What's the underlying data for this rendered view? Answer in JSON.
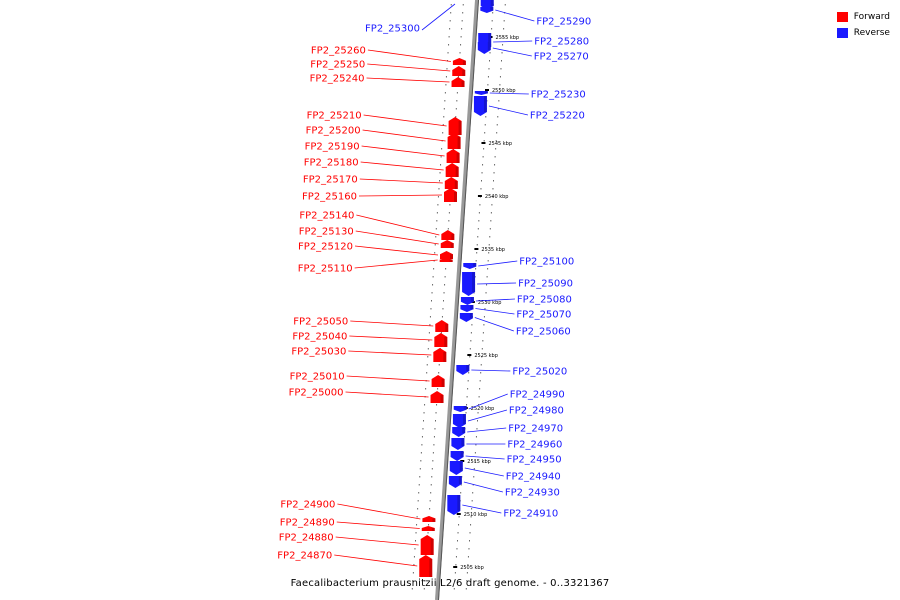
{
  "title": "Faecalibacterium prausnitzii L2/6 draft genome. - 0..3321367",
  "colors": {
    "forward": "#ff0000",
    "reverse": "#1a1aff",
    "axis": "#999999",
    "axis_edge": "#555555"
  },
  "legend": [
    {
      "label": "Forward",
      "color": "#ff0000"
    },
    {
      "label": "Reverse",
      "color": "#1a1aff"
    }
  ],
  "axis": {
    "unit": "kbp",
    "range": [
      2503.5,
      2558.8
    ]
  },
  "ticks": [
    {
      "kbp": 2505,
      "label": "2505 kbp"
    },
    {
      "kbp": 2510,
      "label": "2510 kbp"
    },
    {
      "kbp": 2515,
      "label": "2515 kbp"
    },
    {
      "kbp": 2520,
      "label": "2520 kbp"
    },
    {
      "kbp": 2525,
      "label": "2525 kbp"
    },
    {
      "kbp": 2530,
      "label": "2530 kbp"
    },
    {
      "kbp": 2535,
      "label": "2535 kbp"
    },
    {
      "kbp": 2540,
      "label": "2540 kbp"
    },
    {
      "kbp": 2545,
      "label": "2545 kbp"
    },
    {
      "kbp": 2550,
      "label": "2550 kbp"
    },
    {
      "kbp": 2555,
      "label": "2555 kbp"
    }
  ],
  "genes": [
    {
      "name": "FP2_25300",
      "strand": "reverse"
    },
    {
      "name": "FP2_25290",
      "strand": "reverse"
    },
    {
      "name": "FP2_25280",
      "strand": "reverse"
    },
    {
      "name": "FP2_25270",
      "strand": "reverse"
    },
    {
      "name": "FP2_25260",
      "strand": "forward"
    },
    {
      "name": "FP2_25250",
      "strand": "forward"
    },
    {
      "name": "FP2_25240",
      "strand": "forward"
    },
    {
      "name": "FP2_25230",
      "strand": "reverse"
    },
    {
      "name": "FP2_25220",
      "strand": "reverse"
    },
    {
      "name": "FP2_25210",
      "strand": "forward"
    },
    {
      "name": "FP2_25200",
      "strand": "forward"
    },
    {
      "name": "FP2_25190",
      "strand": "forward"
    },
    {
      "name": "FP2_25180",
      "strand": "forward"
    },
    {
      "name": "FP2_25170",
      "strand": "forward"
    },
    {
      "name": "FP2_25160",
      "strand": "forward"
    },
    {
      "name": "FP2_25140",
      "strand": "forward"
    },
    {
      "name": "FP2_25130",
      "strand": "forward"
    },
    {
      "name": "FP2_25120",
      "strand": "forward"
    },
    {
      "name": "FP2_25110",
      "strand": "forward"
    },
    {
      "name": "FP2_25100",
      "strand": "reverse"
    },
    {
      "name": "FP2_25090",
      "strand": "reverse"
    },
    {
      "name": "FP2_25080",
      "strand": "reverse"
    },
    {
      "name": "FP2_25070",
      "strand": "reverse"
    },
    {
      "name": "FP2_25060",
      "strand": "reverse"
    },
    {
      "name": "FP2_25050",
      "strand": "forward"
    },
    {
      "name": "FP2_25040",
      "strand": "forward"
    },
    {
      "name": "FP2_25030",
      "strand": "forward"
    },
    {
      "name": "FP2_25020",
      "strand": "reverse"
    },
    {
      "name": "FP2_25010",
      "strand": "forward"
    },
    {
      "name": "FP2_25000",
      "strand": "forward"
    },
    {
      "name": "FP2_24990",
      "strand": "reverse"
    },
    {
      "name": "FP2_24980",
      "strand": "reverse"
    },
    {
      "name": "FP2_24970",
      "strand": "reverse"
    },
    {
      "name": "FP2_24960",
      "strand": "reverse"
    },
    {
      "name": "FP2_24950",
      "strand": "reverse"
    },
    {
      "name": "FP2_24940",
      "strand": "reverse"
    },
    {
      "name": "FP2_24930",
      "strand": "reverse"
    },
    {
      "name": "FP2_24910",
      "strand": "reverse"
    },
    {
      "name": "FP2_24900",
      "strand": "forward"
    },
    {
      "name": "FP2_24890",
      "strand": "forward"
    },
    {
      "name": "FP2_24880",
      "strand": "forward"
    },
    {
      "name": "FP2_24870",
      "strand": "forward"
    }
  ]
}
